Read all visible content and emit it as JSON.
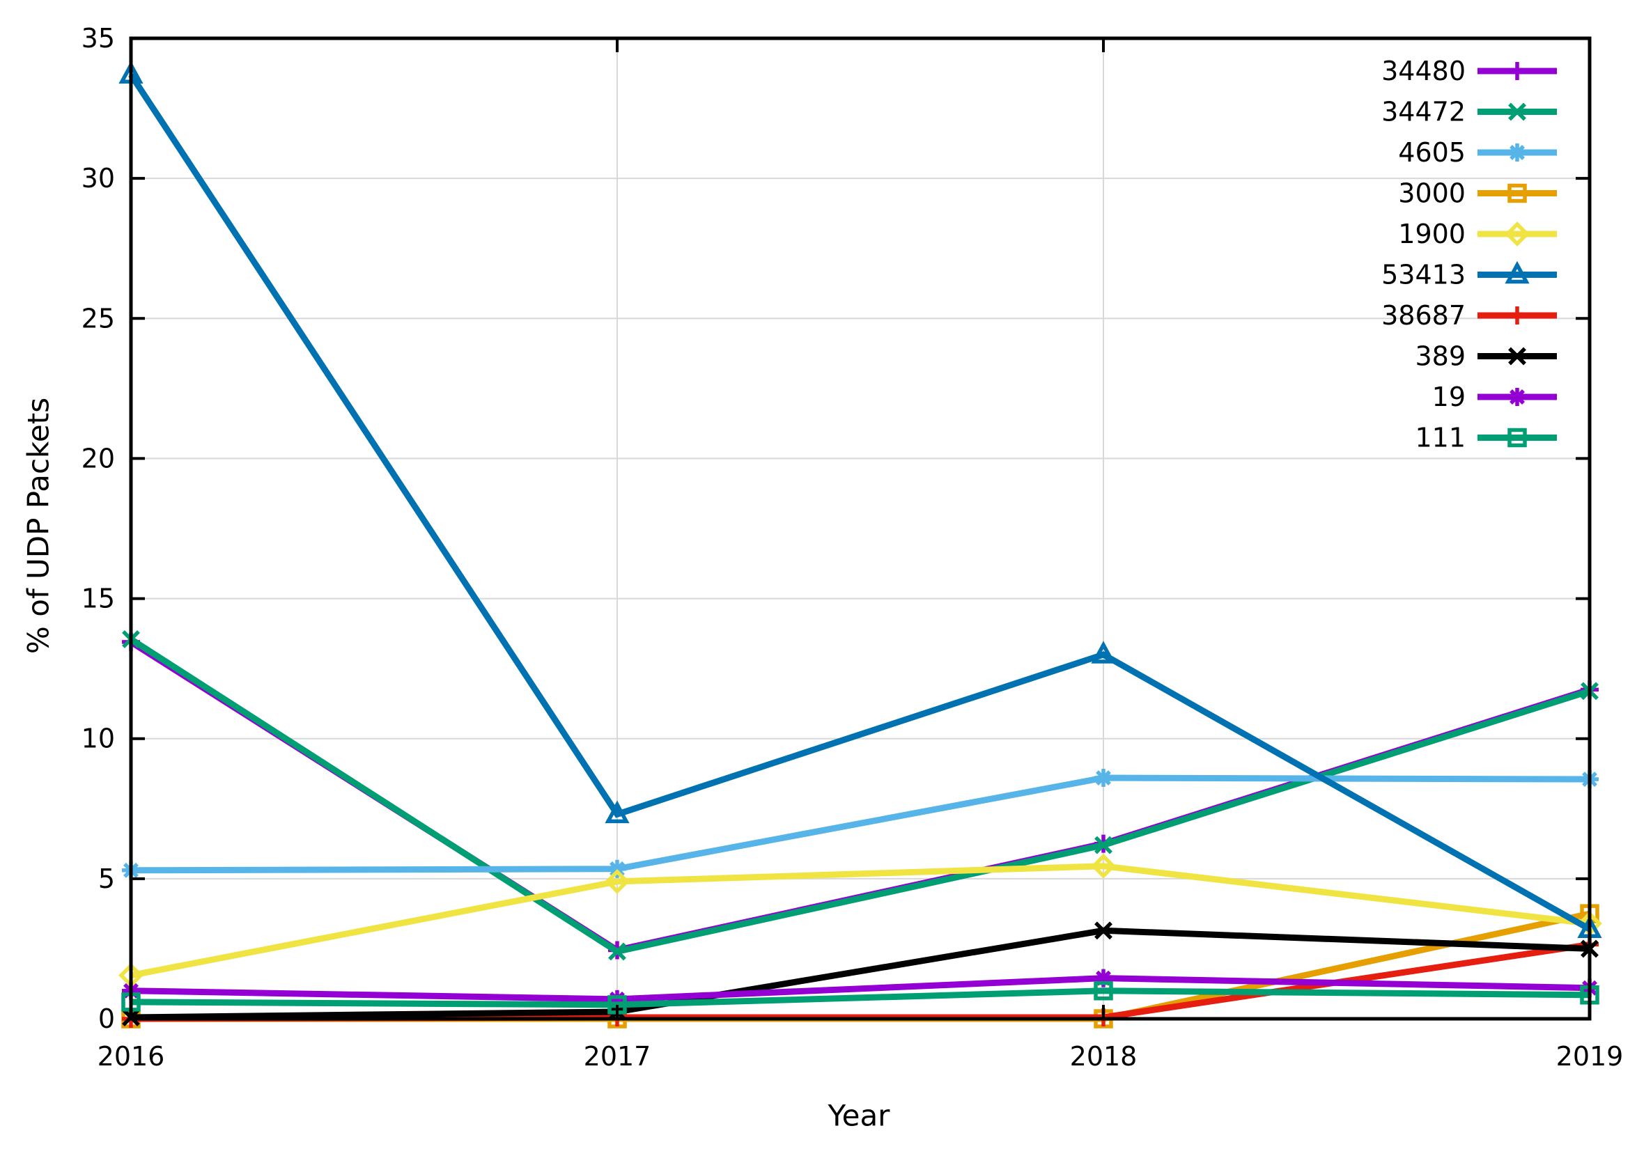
{
  "figure": {
    "background": "#ffffff",
    "border_color": "#000000",
    "grid_color": "#d8d8d8",
    "text_color": "#000000"
  },
  "chart_data": {
    "type": "line",
    "title": "",
    "xlabel": "Year",
    "ylabel": "% of UDP Packets",
    "x": [
      2016,
      2017,
      2018,
      2019
    ],
    "xlim": [
      2016,
      2019
    ],
    "ylim": [
      0,
      35
    ],
    "xticks": [
      "2016",
      "2017",
      "2018",
      "2019"
    ],
    "yticks": [
      0,
      5,
      10,
      15,
      20,
      25,
      30,
      35
    ],
    "grid": true,
    "legend_position": "top-right-inside",
    "series": [
      {
        "name": "34480",
        "color": "#9400d3",
        "marker": "plus",
        "values": [
          13.45,
          2.45,
          6.25,
          11.75
        ]
      },
      {
        "name": "34472",
        "color": "#009e73",
        "marker": "cross",
        "values": [
          13.55,
          2.4,
          6.2,
          11.7
        ]
      },
      {
        "name": "4605",
        "color": "#56b4e9",
        "marker": "asterisk",
        "values": [
          5.3,
          5.35,
          8.6,
          8.55
        ]
      },
      {
        "name": "3000",
        "color": "#e69f00",
        "marker": "square-open",
        "values": [
          0.0,
          0.0,
          0.0,
          3.75
        ]
      },
      {
        "name": "1900",
        "color": "#f0e442",
        "marker": "diamond-open",
        "values": [
          1.55,
          4.9,
          5.45,
          3.4
        ]
      },
      {
        "name": "53413",
        "color": "#0072b2",
        "marker": "triangle-open",
        "values": [
          33.7,
          7.3,
          13.0,
          3.2
        ]
      },
      {
        "name": "38687",
        "color": "#e51e10",
        "marker": "plus",
        "values": [
          0.0,
          0.05,
          0.05,
          2.65
        ]
      },
      {
        "name": "389",
        "color": "#000000",
        "marker": "cross",
        "values": [
          0.05,
          0.25,
          3.15,
          2.5
        ]
      },
      {
        "name": "19",
        "color": "#9400d3",
        "marker": "asterisk",
        "values": [
          1.0,
          0.7,
          1.45,
          1.1
        ]
      },
      {
        "name": "111",
        "color": "#009e73",
        "marker": "square-open",
        "values": [
          0.6,
          0.5,
          1.0,
          0.85
        ]
      }
    ]
  }
}
